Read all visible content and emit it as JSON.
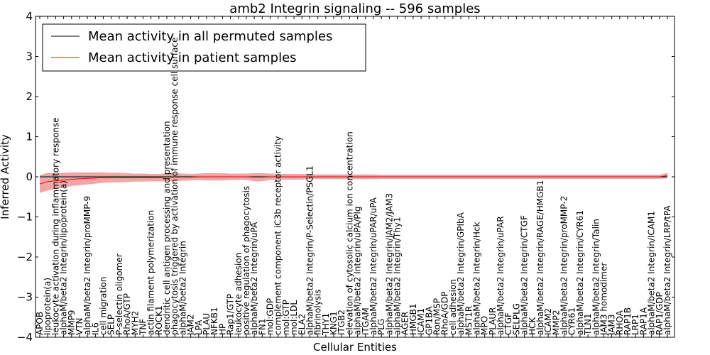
{
  "chart_data": {
    "type": "line",
    "title": "amb2 Integrin signaling -- 596 samples",
    "xlabel": "Cellular Entities",
    "ylabel": "Inferred Activity",
    "ylim": [
      -4,
      4
    ],
    "yticks": [
      -4,
      -3,
      -2,
      -1,
      0,
      1,
      2,
      3,
      4
    ],
    "ytick_labels": [
      "−4",
      "−3",
      "−2",
      "−1",
      "0",
      "1",
      "2",
      "3",
      "4"
    ],
    "legend_position": "top-left",
    "colors": {
      "permuted_line": "#000000",
      "patient_line": "#ff0000",
      "patient_band": "#f08080",
      "permuted_band": "#b0b0b0",
      "frame": "#000000"
    },
    "categories": [
      "APOB",
      "lipoprotein(a)",
      "leukocyte activation during inflammatory response",
      "alphaM/beta2 Integrin/lipoprotein(a)",
      "MMP9",
      "VTN",
      "alphaM/beta2 Integrin/proMMP-9",
      "IL6",
      "cell migration",
      "SELP",
      "P-selectin oligomer",
      "RhoA/GTP",
      "MYH2",
      "TNF",
      "actin filament polymerization",
      "ROCK1",
      "dendritic cell antigen processing and presentation",
      "phagocytosis triggered by activation of immune response cell surface",
      "alphaM/beta2 Integrin",
      "JAM2",
      "LPA",
      "PLAU",
      "NFKB1",
      "HP",
      "Rap1/GTP",
      "leukocyte adhesion",
      "positive regulation of phagocytosis",
      "alphaM/beta2 Integrin/uPA",
      "FN1",
      "mol:GDP",
      "complement component iC3b receptor activity",
      "mol:GTP",
      "mol:LDL",
      "ELA2",
      "alphaM/beta2 Integrin/P-Selectin/PSGL1",
      "fibrinolysis",
      "THY1",
      "KNG1",
      "ITGB2",
      "elevation of cytosolic calcium ion concentration",
      "alphaM/beta2 Integrin/uPA/Plg",
      "ITGAM",
      "alphaM/beta2 Integrin/uPAR/uPA",
      "PLG",
      "alphaM/beta2 Integrin/JAM2/JAM3",
      "alphaM/beta2 Integrin/Thy1",
      "AGER",
      "HMGB1",
      "ICAM1",
      "GP1BA",
      "Ron/MSP",
      "RhoA/GDP",
      "cell adhesion",
      "alphaM/beta2 Integrin/GPIbA",
      "MST1R",
      "alphaM/beta2 Integrin/Hck",
      "MPO",
      "PLAUR",
      "alphaM/beta2 Integrin/uPAR",
      "CTGF",
      "SELPLG",
      "alphaM/beta2 Integrin/CTGF",
      "HCK",
      "alphaM/beta2 Integrin/RAGE/HMGB1",
      "ICAM2",
      "MMP2",
      "alphaM/beta2 Integrin/proMMP-2",
      "CYR61",
      "alphaM/beta2 Integrin/CYR61",
      "TLN1",
      "alphaM/beta2 Integrin/Talin",
      "JAM3 homodimer",
      "JAM3",
      "RHOA",
      "RAP1B",
      "LRP1",
      "RAP1A",
      "alphaM/beta2 Integrin/ICAM1",
      "RAP1/GDP",
      "alphaM/beta2 Integrin/LRP/tPA"
    ],
    "series": [
      {
        "name": "Mean activity in all permuted samples",
        "color": "#000000",
        "values": [
          0,
          0,
          0,
          0,
          0,
          0,
          0,
          0,
          0,
          0,
          0,
          0,
          0,
          0,
          0,
          0,
          0,
          0,
          0,
          0,
          0,
          0,
          0,
          0,
          0,
          0,
          0,
          0,
          0,
          0,
          0,
          0,
          0,
          0,
          0,
          0,
          0,
          0,
          0,
          0,
          0,
          0,
          0,
          0,
          0,
          0,
          0,
          0,
          0,
          0,
          0,
          0,
          0,
          0,
          0,
          0,
          0,
          0,
          0,
          0,
          0,
          0,
          0,
          0,
          0,
          0,
          0,
          0,
          0,
          0,
          0,
          0,
          0,
          0,
          0,
          0,
          0,
          0,
          0,
          0
        ],
        "band": [
          0.04,
          0.04,
          0.04,
          0.04,
          0.04,
          0.04,
          0.04,
          0.04,
          0.04,
          0.04,
          0.04,
          0.04,
          0.04,
          0.04,
          0.04,
          0.04,
          0.04,
          0.04,
          0.04,
          0.04,
          0.04,
          0.04,
          0.04,
          0.04,
          0.04,
          0.04,
          0.04,
          0.04,
          0.04,
          0.04,
          0.04,
          0.04,
          0.04,
          0.04,
          0.04,
          0.04,
          0.04,
          0.04,
          0.04,
          0.04,
          0.04,
          0.04,
          0.04,
          0.04,
          0.04,
          0.04,
          0.04,
          0.04,
          0.04,
          0.04,
          0.04,
          0.04,
          0.04,
          0.04,
          0.04,
          0.04,
          0.04,
          0.04,
          0.04,
          0.04,
          0.04,
          0.04,
          0.04,
          0.04,
          0.04,
          0.04,
          0.04,
          0.04,
          0.04,
          0.04,
          0.04,
          0.04,
          0.04,
          0.04,
          0.04,
          0.04,
          0.04,
          0.04,
          0.04,
          0.04
        ]
      },
      {
        "name": "Mean activity in patient samples",
        "color": "#ff0000",
        "values": [
          -0.18,
          -0.12,
          -0.1,
          -0.08,
          -0.06,
          -0.05,
          -0.04,
          -0.03,
          -0.02,
          -0.02,
          -0.02,
          -0.02,
          -0.02,
          -0.02,
          -0.02,
          -0.02,
          -0.01,
          -0.01,
          -0.01,
          -0.01,
          0,
          0,
          0,
          0,
          0,
          0,
          0,
          -0.01,
          -0.01,
          0,
          0,
          0,
          0,
          0,
          0,
          0,
          0,
          0,
          0,
          0,
          0,
          0,
          0,
          0,
          0,
          0,
          0,
          0,
          0,
          0,
          0,
          0,
          0,
          0,
          0,
          0,
          0,
          0,
          0,
          0,
          0,
          0,
          0,
          0,
          0,
          0,
          0,
          0,
          0,
          0,
          0,
          0,
          0,
          0,
          0,
          0,
          0,
          0,
          0,
          0.03
        ],
        "band": [
          0.22,
          0.22,
          0.2,
          0.18,
          0.17,
          0.16,
          0.15,
          0.14,
          0.13,
          0.12,
          0.12,
          0.11,
          0.1,
          0.1,
          0.09,
          0.09,
          0.1,
          0.1,
          0.09,
          0.08,
          0.08,
          0.09,
          0.09,
          0.09,
          0.08,
          0.08,
          0.08,
          0.1,
          0.1,
          0.08,
          0.07,
          0.07,
          0.07,
          0.07,
          0.06,
          0.06,
          0.06,
          0.06,
          0.06,
          0.06,
          0.06,
          0.06,
          0.06,
          0.05,
          0.05,
          0.05,
          0.05,
          0.05,
          0.05,
          0.05,
          0.05,
          0.05,
          0.05,
          0.05,
          0.05,
          0.05,
          0.05,
          0.05,
          0.05,
          0.05,
          0.05,
          0.05,
          0.05,
          0.05,
          0.05,
          0.05,
          0.05,
          0.05,
          0.05,
          0.05,
          0.05,
          0.05,
          0.05,
          0.05,
          0.05,
          0.05,
          0.05,
          0.05,
          0.05,
          0.07
        ]
      }
    ]
  }
}
